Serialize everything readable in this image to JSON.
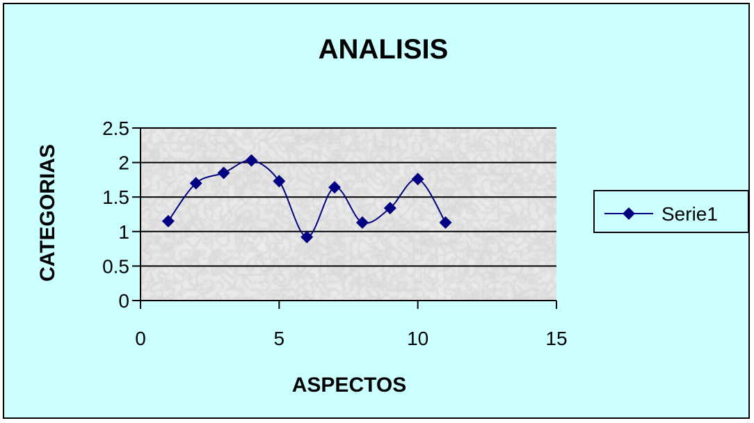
{
  "chart_data": {
    "type": "line",
    "title": "ANALISIS",
    "xlabel": "ASPECTOS",
    "ylabel": "CATEGORIAS",
    "xlim": [
      0,
      15
    ],
    "ylim": [
      0,
      2.5
    ],
    "xticks": [
      "0",
      "5",
      "10",
      "15"
    ],
    "yticks": [
      "0",
      "0.5",
      "1",
      "1.5",
      "2",
      "2.5"
    ],
    "grid": "horizontal",
    "smooth": true,
    "legend_position": "right",
    "series": [
      {
        "name": "Serie1",
        "color": "#000080",
        "marker": "diamond",
        "x": [
          1,
          2,
          3,
          4,
          5,
          6,
          7,
          8,
          9,
          10,
          11
        ],
        "values": [
          1.15,
          1.7,
          1.85,
          2.03,
          1.73,
          0.92,
          1.64,
          1.13,
          1.34,
          1.76,
          1.13
        ]
      }
    ]
  },
  "colors": {
    "background": "#ccffff",
    "plot_area": "marble-gray",
    "series": "#000080"
  }
}
